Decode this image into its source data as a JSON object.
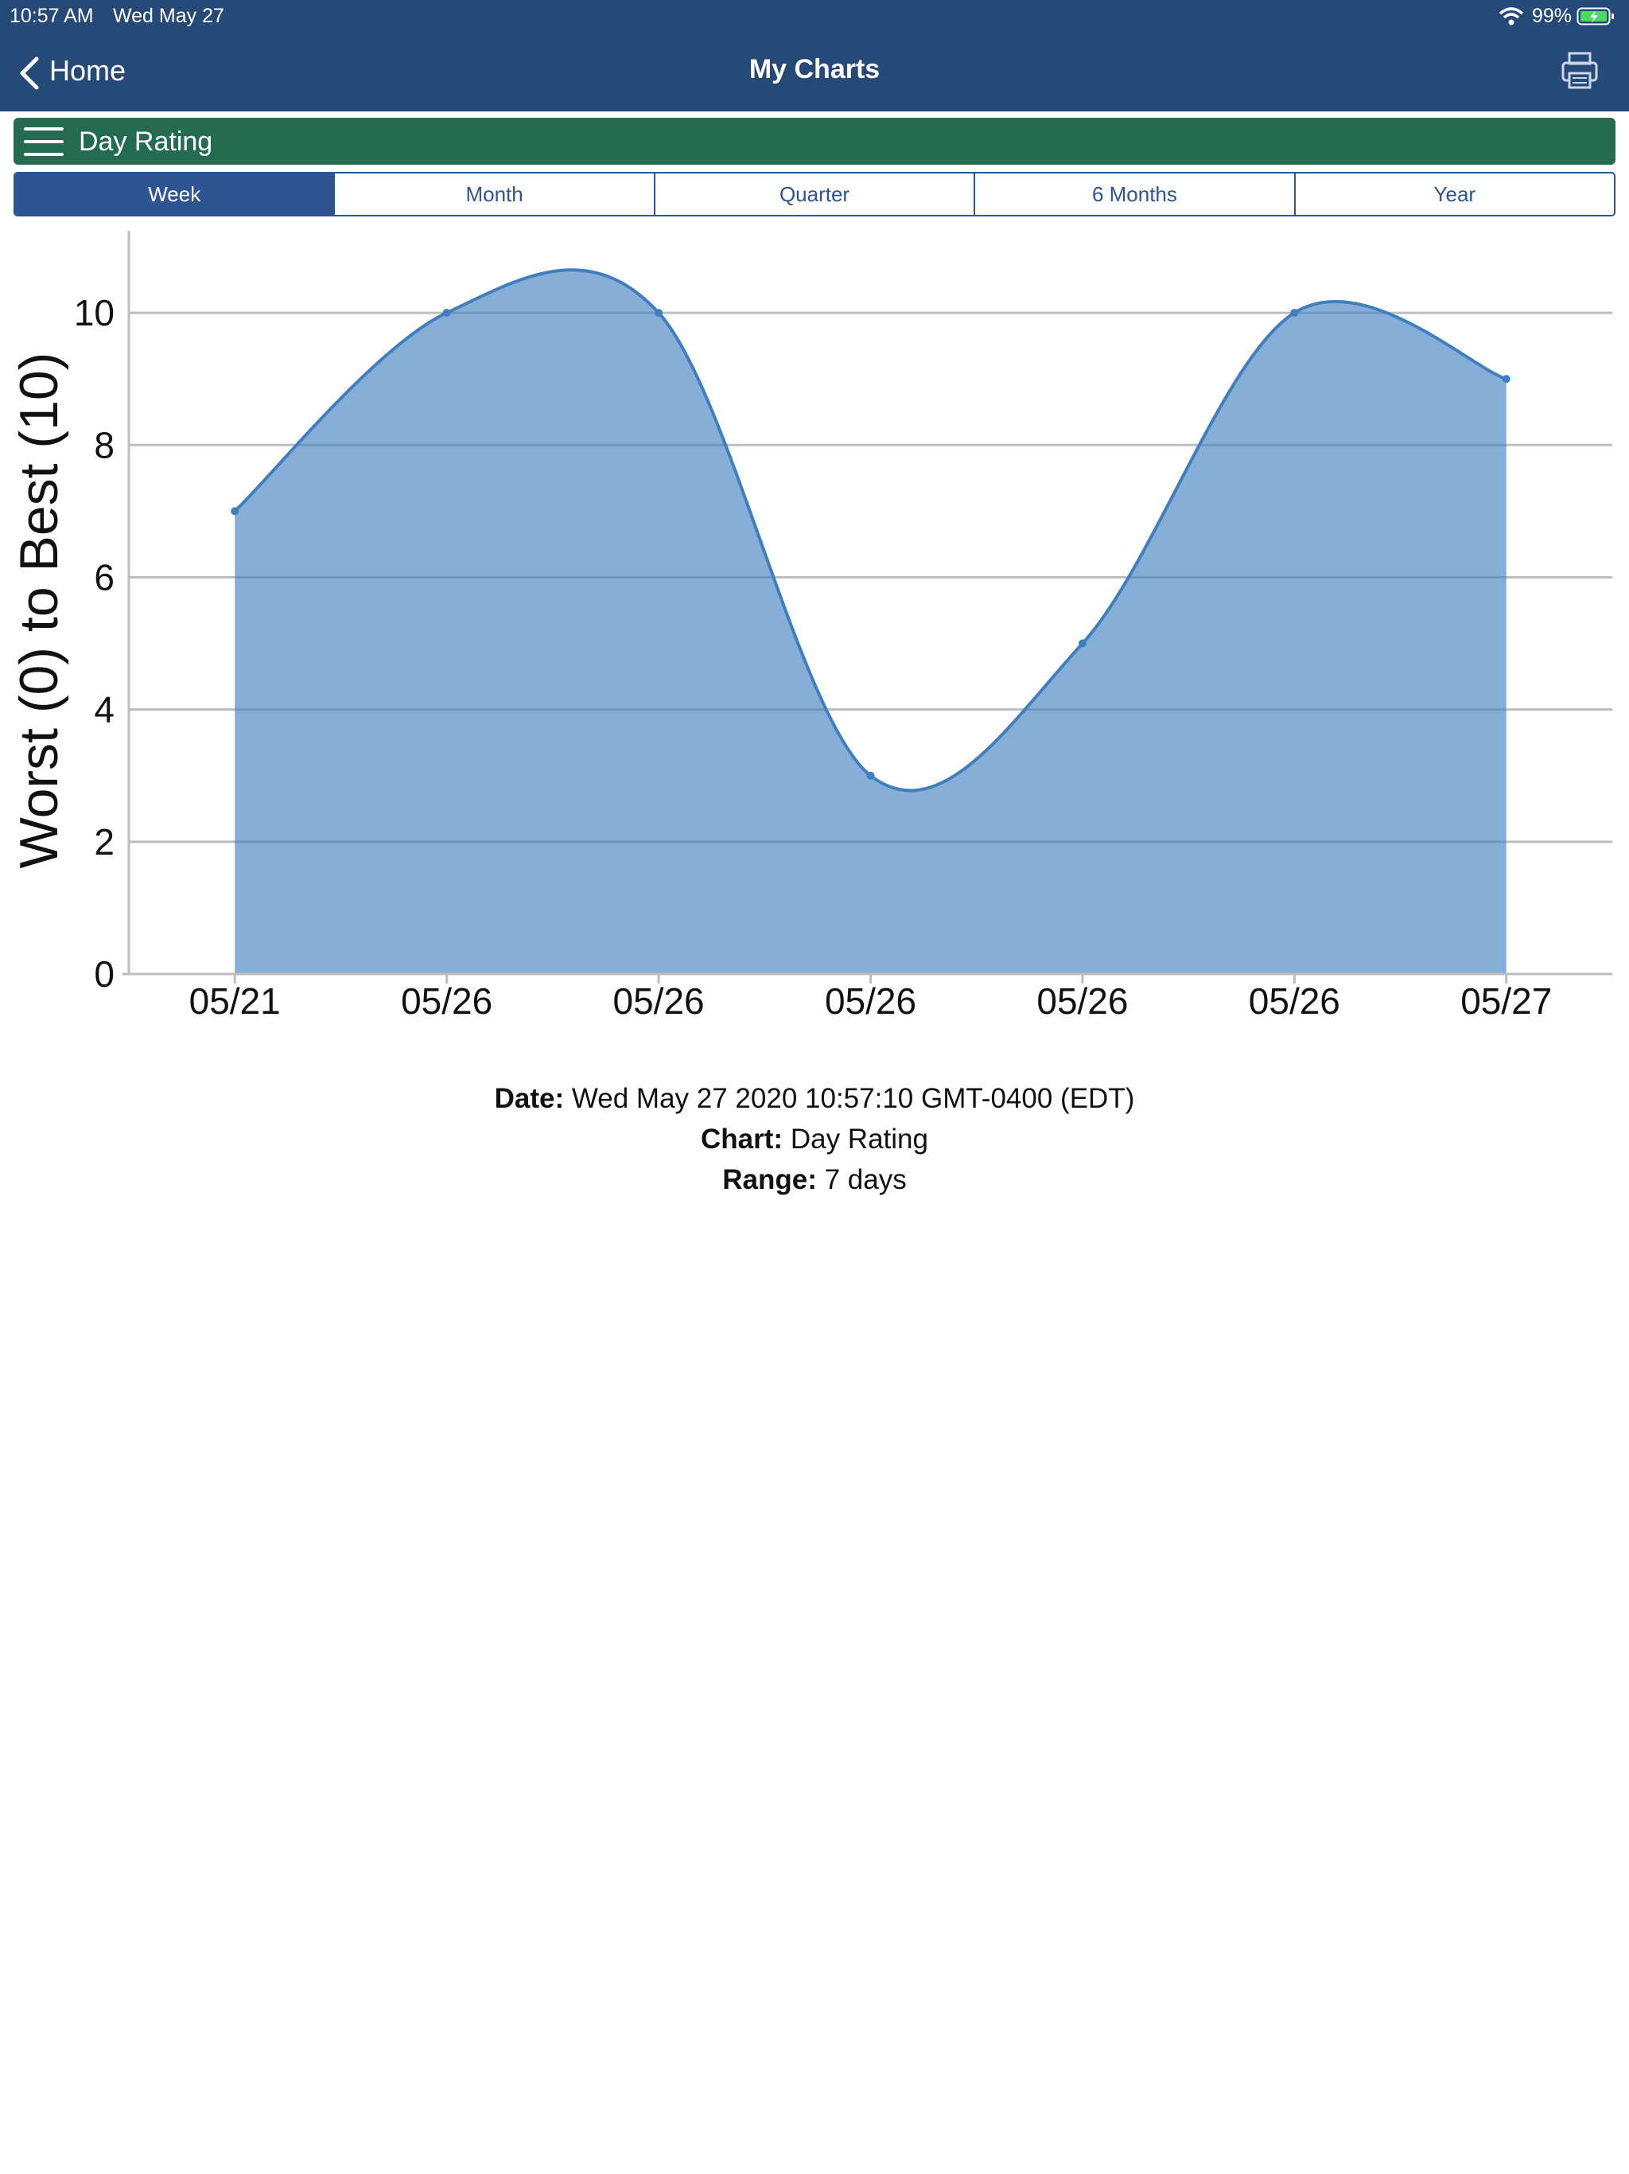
{
  "status_bar": {
    "time": "10:57 AM",
    "date": "Wed May 27",
    "battery": "99%"
  },
  "nav": {
    "back": "Home",
    "title": "My Charts"
  },
  "menu": {
    "title": "Day Rating"
  },
  "tabs": [
    "Week",
    "Month",
    "Quarter",
    "6 Months",
    "Year"
  ],
  "chart_data": {
    "type": "area",
    "ylabel": "Worst (0) to Best (10)",
    "categories": [
      "05/21",
      "05/26",
      "05/26",
      "05/26",
      "05/26",
      "05/26",
      "05/27"
    ],
    "values": [
      7,
      10,
      10,
      3,
      5,
      10,
      9
    ],
    "color": "#3f7fc0",
    "ylim": [
      0,
      11
    ],
    "yticks": [
      0,
      2,
      4,
      6,
      8,
      10
    ],
    "grid": true,
    "smooth": true
  },
  "info": [
    {
      "label": "Date:",
      "value": "Wed May 27 2020 10:57:10 GMT-0400 (EDT)"
    },
    {
      "label": "Chart:",
      "value": "Day Rating"
    },
    {
      "label": "Range:",
      "value": "7 days"
    }
  ]
}
